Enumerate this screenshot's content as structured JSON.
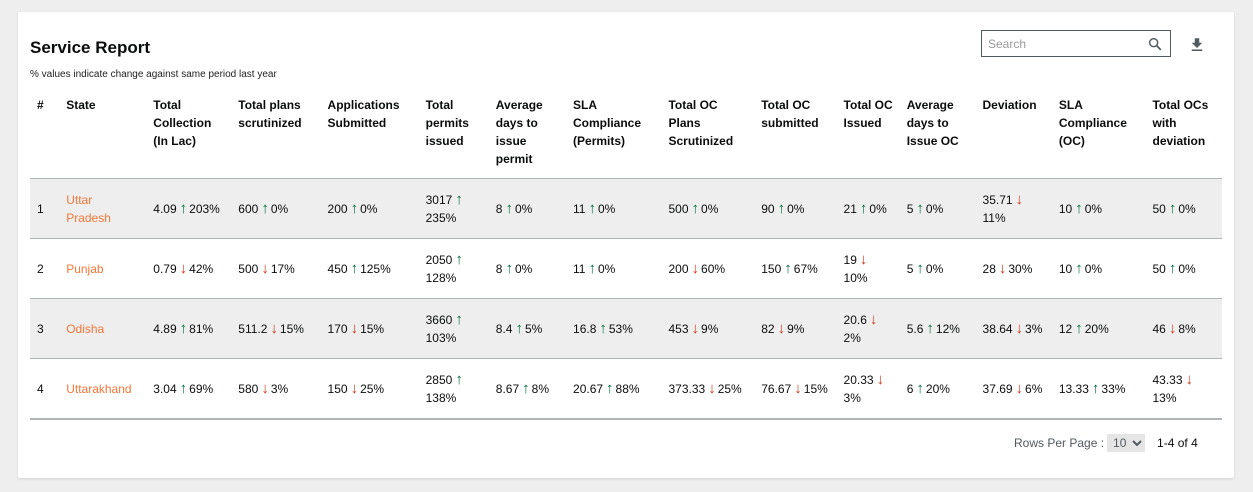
{
  "report": {
    "title": "Service Report",
    "subtitle": "% values indicate change against same period last year"
  },
  "search": {
    "placeholder": "Search",
    "value": ""
  },
  "table": {
    "headers": [
      "#",
      "State",
      "Total Collection (In Lac)",
      "Total plans scrutinized",
      "Applications Submitted",
      "Total permits issued",
      "Average days to issue permit",
      "SLA Compliance (Permits)",
      "Total OC Plans Scrutinized",
      "Total OC submitted",
      "Total OC Issued",
      "Average days to Issue OC",
      "Deviation",
      "SLA Compliance (OC)",
      "Total OCs with deviation"
    ],
    "rows": [
      {
        "num": "1",
        "state": "Uttar Pradesh",
        "cells": [
          {
            "v": "4.09",
            "d": "up",
            "p": "203%"
          },
          {
            "v": "600",
            "d": "up",
            "p": "0%"
          },
          {
            "v": "200",
            "d": "up",
            "p": "0%"
          },
          {
            "v": "3017",
            "d": "up",
            "p": "235%"
          },
          {
            "v": "8",
            "d": "up",
            "p": "0%"
          },
          {
            "v": "11",
            "d": "up",
            "p": "0%"
          },
          {
            "v": "500",
            "d": "up",
            "p": "0%"
          },
          {
            "v": "90",
            "d": "up",
            "p": "0%"
          },
          {
            "v": "21",
            "d": "up",
            "p": "0%"
          },
          {
            "v": "5",
            "d": "up",
            "p": "0%"
          },
          {
            "v": "35.71",
            "d": "down",
            "p": "11%"
          },
          {
            "v": "10",
            "d": "up",
            "p": "0%"
          },
          {
            "v": "50",
            "d": "up",
            "p": "0%"
          }
        ]
      },
      {
        "num": "2",
        "state": "Punjab",
        "cells": [
          {
            "v": "0.79",
            "d": "down",
            "p": "42%"
          },
          {
            "v": "500",
            "d": "down",
            "p": "17%"
          },
          {
            "v": "450",
            "d": "up",
            "p": "125%"
          },
          {
            "v": "2050",
            "d": "up",
            "p": "128%"
          },
          {
            "v": "8",
            "d": "up",
            "p": "0%"
          },
          {
            "v": "11",
            "d": "up",
            "p": "0%"
          },
          {
            "v": "200",
            "d": "down",
            "p": "60%"
          },
          {
            "v": "150",
            "d": "up",
            "p": "67%"
          },
          {
            "v": "19",
            "d": "down",
            "p": "10%"
          },
          {
            "v": "5",
            "d": "up",
            "p": "0%"
          },
          {
            "v": "28",
            "d": "down",
            "p": "30%"
          },
          {
            "v": "10",
            "d": "up",
            "p": "0%"
          },
          {
            "v": "50",
            "d": "up",
            "p": "0%"
          }
        ]
      },
      {
        "num": "3",
        "state": "Odisha",
        "cells": [
          {
            "v": "4.89",
            "d": "up",
            "p": "81%"
          },
          {
            "v": "511.2",
            "d": "down",
            "p": "15%"
          },
          {
            "v": "170",
            "d": "down",
            "p": "15%"
          },
          {
            "v": "3660",
            "d": "up",
            "p": "103%"
          },
          {
            "v": "8.4",
            "d": "up",
            "p": "5%"
          },
          {
            "v": "16.8",
            "d": "up",
            "p": "53%"
          },
          {
            "v": "453",
            "d": "down",
            "p": "9%"
          },
          {
            "v": "82",
            "d": "down",
            "p": "9%"
          },
          {
            "v": "20.6",
            "d": "down",
            "p": "2%"
          },
          {
            "v": "5.6",
            "d": "up",
            "p": "12%"
          },
          {
            "v": "38.64",
            "d": "down",
            "p": "3%"
          },
          {
            "v": "12",
            "d": "up",
            "p": "20%"
          },
          {
            "v": "46",
            "d": "down",
            "p": "8%"
          }
        ]
      },
      {
        "num": "4",
        "state": "Uttarakhand",
        "cells": [
          {
            "v": "3.04",
            "d": "up",
            "p": "69%"
          },
          {
            "v": "580",
            "d": "down",
            "p": "3%"
          },
          {
            "v": "150",
            "d": "down",
            "p": "25%"
          },
          {
            "v": "2850",
            "d": "up",
            "p": "138%"
          },
          {
            "v": "8.67",
            "d": "up",
            "p": "8%"
          },
          {
            "v": "20.67",
            "d": "up",
            "p": "88%"
          },
          {
            "v": "373.33",
            "d": "down",
            "p": "25%"
          },
          {
            "v": "76.67",
            "d": "down",
            "p": "15%"
          },
          {
            "v": "20.33",
            "d": "down",
            "p": "3%"
          },
          {
            "v": "6",
            "d": "up",
            "p": "20%"
          },
          {
            "v": "37.69",
            "d": "down",
            "p": "6%"
          },
          {
            "v": "13.33",
            "d": "up",
            "p": "33%"
          },
          {
            "v": "43.33",
            "d": "down",
            "p": "13%"
          }
        ]
      }
    ]
  },
  "pagination": {
    "rows_per_page_label": "Rows Per Page :",
    "rows_per_page_value": "10",
    "range": "1-4 of 4"
  },
  "colors": {
    "up": "#00703c",
    "down": "#d4351c",
    "link": "#f47738"
  },
  "icons": {
    "search": "search-icon",
    "download": "download-icon",
    "up": "arrow-up-icon",
    "down": "arrow-down-icon"
  }
}
